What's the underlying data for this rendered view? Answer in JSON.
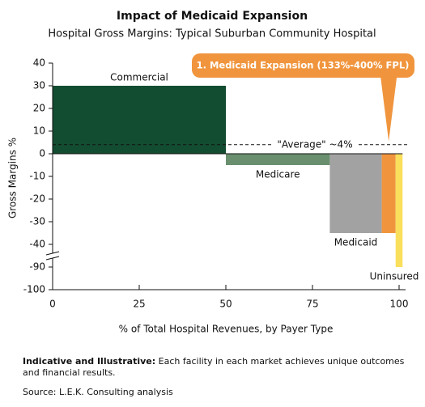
{
  "chart_data": {
    "type": "variable-width-bar",
    "title": "Impact of Medicaid Expansion",
    "subtitle": "Hospital Gross Margins: Typical Suburban Community Hospital",
    "y_label": "Gross Margins %",
    "x_label": "% of Total Hospital Revenues, by Payer Type",
    "xlim": [
      0,
      100
    ],
    "xticks": [
      0,
      25,
      50,
      75,
      100
    ],
    "ylim": [
      -100,
      40
    ],
    "yticks": [
      40,
      30,
      20,
      10,
      0,
      -10,
      -20,
      -30,
      -40,
      -90,
      -100
    ],
    "ybreak": [
      -45,
      -85
    ],
    "bars": [
      {
        "name": "Commercial",
        "x": [
          0,
          50
        ],
        "value": 30,
        "color": "#134d31"
      },
      {
        "name": "Medicare",
        "x": [
          50,
          80
        ],
        "value": -5,
        "color": "#6a8f6f"
      },
      {
        "name": "Medicaid",
        "x": [
          80,
          95
        ],
        "value": -35,
        "color": "#a2a2a2"
      },
      {
        "name": null,
        "x": [
          95,
          99
        ],
        "value": -35,
        "color": "#f0953d",
        "callout": "1. Medicaid Expansion (133%-400% FPL)"
      },
      {
        "name": "Uninsured",
        "x": [
          99,
          101
        ],
        "value": -90,
        "color": "#f9df5c"
      }
    ],
    "average": {
      "value": 4,
      "label": "\"Average\" ~4%"
    },
    "footnote_label": "Indicative and Illustrative:",
    "footnote": "Each facility in each market achieves unique outcomes and financial results.",
    "source": "Source: L.E.K. Consulting analysis"
  }
}
